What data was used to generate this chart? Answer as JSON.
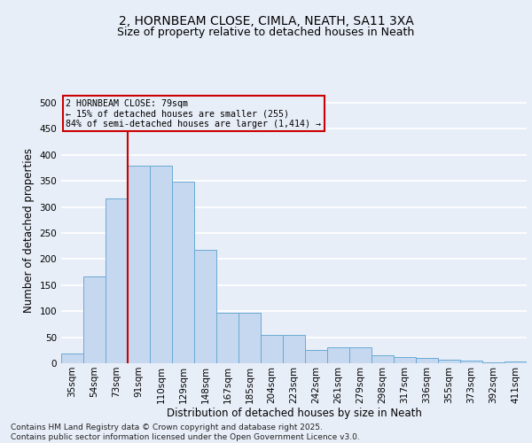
{
  "title_line1": "2, HORNBEAM CLOSE, CIMLA, NEATH, SA11 3XA",
  "title_line2": "Size of property relative to detached houses in Neath",
  "xlabel": "Distribution of detached houses by size in Neath",
  "ylabel": "Number of detached properties",
  "categories": [
    "35sqm",
    "54sqm",
    "73sqm",
    "91sqm",
    "110sqm",
    "129sqm",
    "148sqm",
    "167sqm",
    "185sqm",
    "204sqm",
    "223sqm",
    "242sqm",
    "261sqm",
    "279sqm",
    "298sqm",
    "317sqm",
    "336sqm",
    "355sqm",
    "373sqm",
    "392sqm",
    "411sqm"
  ],
  "values": [
    18,
    167,
    317,
    379,
    379,
    348,
    218,
    97,
    97,
    55,
    55,
    26,
    30,
    30,
    15,
    12,
    10,
    7,
    5,
    2,
    3
  ],
  "bar_color": "#c5d8f0",
  "bar_edge_color": "#6aaad4",
  "background_color": "#e8eef8",
  "grid_color": "#ffffff",
  "annotation_box_text": "2 HORNBEAM CLOSE: 79sqm\n← 15% of detached houses are smaller (255)\n84% of semi-detached houses are larger (1,414) →",
  "annotation_box_color": "#cc0000",
  "vline_color": "#cc0000",
  "vline_x": 2.48,
  "ylim": [
    0,
    510
  ],
  "yticks": [
    0,
    50,
    100,
    150,
    200,
    250,
    300,
    350,
    400,
    450,
    500
  ],
  "footnote": "Contains HM Land Registry data © Crown copyright and database right 2025.\nContains public sector information licensed under the Open Government Licence v3.0.",
  "title_fontsize": 10,
  "subtitle_fontsize": 9,
  "axis_label_fontsize": 8.5,
  "tick_fontsize": 7.5,
  "footnote_fontsize": 6.5
}
